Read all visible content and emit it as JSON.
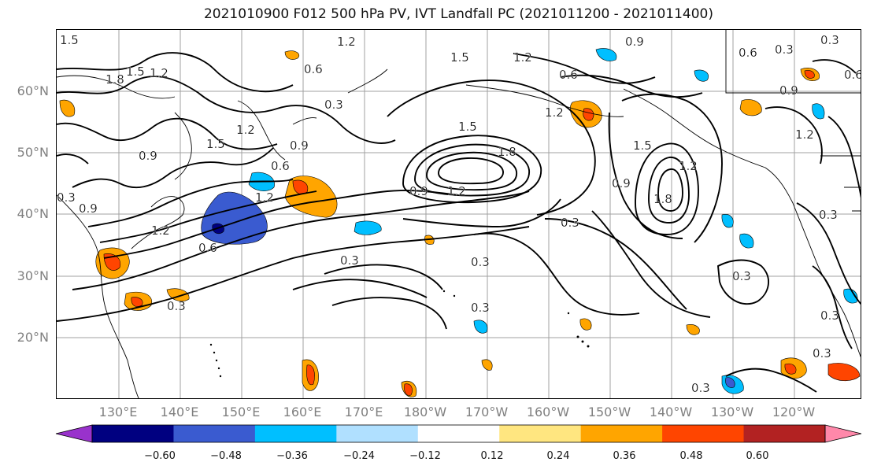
{
  "title": "2021010900 F012 500 hPa PV, IVT Landfall PC (2021011200 - 2021011400)",
  "lat_labels": [
    "60°N",
    "50°N",
    "40°N",
    "30°N",
    "20°N"
  ],
  "lon_labels": [
    "130°E",
    "140°E",
    "150°E",
    "160°E",
    "170°E",
    "180°W",
    "170°W",
    "160°W",
    "150°W",
    "140°W",
    "130°W",
    "120°W"
  ],
  "colorbar": {
    "colors": [
      "#9932cc",
      "#000080",
      "#3a5bd0",
      "#00bfff",
      "#b0e0ff",
      "#ffffff",
      "#ffe680",
      "#ffa500",
      "#ff4500",
      "#b22222",
      "#ff88aa"
    ],
    "ticks": [
      "−0.60",
      "−0.48",
      "−0.36",
      "−0.24",
      "−0.12",
      "0.12",
      "0.24",
      "0.36",
      "0.48",
      "0.60"
    ]
  },
  "contour_labels": [
    "1.5",
    "1.8",
    "1.5",
    "1.2",
    "1.2",
    "0.6",
    "0.3",
    "1.2",
    "0.9",
    "0.9",
    "0.6",
    "0.3",
    "0.9",
    "1.2",
    "1.5",
    "0.9",
    "1.2",
    "0.6",
    "0.3",
    "1.2",
    "1.5",
    "0.6",
    "1.8",
    "1.5",
    "1.2",
    "0.6",
    "1.2",
    "1.8",
    "1.5",
    "1.2",
    "0.9",
    "0.3",
    "0.3",
    "0.3",
    "0.3",
    "0.3",
    "0.3",
    "0.9",
    "1.2",
    "0.9",
    "0.3",
    "0.3",
    "0.3",
    "0.6",
    "0.3",
    "0.3"
  ]
}
